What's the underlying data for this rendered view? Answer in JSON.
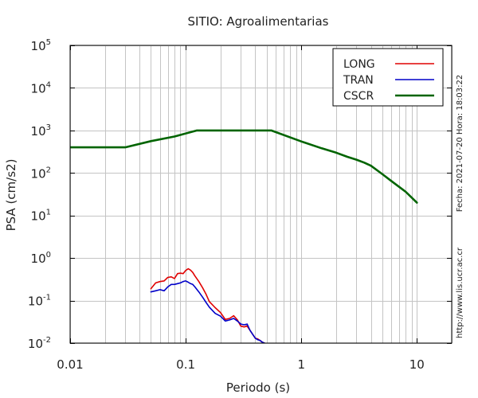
{
  "chart_data": {
    "type": "line",
    "title": "SITIO: Agroalimentarias",
    "xlabel": "Periodo (s)",
    "ylabel": "PSA (cm/s2)",
    "x_scale": "log",
    "y_scale": "log",
    "xlim": [
      0.01,
      20
    ],
    "ylim": [
      0.01,
      100000
    ],
    "grid": true,
    "legend_position": "top-right",
    "x_ticks": [
      {
        "value": 0.01,
        "label": "0.01"
      },
      {
        "value": 0.1,
        "label": "0.1"
      },
      {
        "value": 1,
        "label": "1"
      },
      {
        "value": 10,
        "label": "10"
      }
    ],
    "y_ticks": [
      {
        "value": 0.01,
        "base": "10",
        "exp": "-2"
      },
      {
        "value": 0.1,
        "base": "10",
        "exp": "-1"
      },
      {
        "value": 1,
        "base": "10",
        "exp": "0"
      },
      {
        "value": 10,
        "base": "10",
        "exp": "1"
      },
      {
        "value": 100,
        "base": "10",
        "exp": "2"
      },
      {
        "value": 1000,
        "base": "10",
        "exp": "3"
      },
      {
        "value": 10000,
        "base": "10",
        "exp": "4"
      },
      {
        "value": 100000,
        "base": "10",
        "exp": "5"
      }
    ],
    "series": [
      {
        "name": "LONG",
        "color": "#e00000",
        "x": [
          0.05,
          0.055,
          0.06,
          0.065,
          0.07,
          0.075,
          0.08,
          0.085,
          0.09,
          0.095,
          0.1,
          0.105,
          0.11,
          0.115,
          0.12,
          0.13,
          0.14,
          0.15,
          0.16,
          0.18,
          0.2,
          0.22,
          0.24,
          0.26,
          0.28,
          0.3,
          0.32,
          0.34,
          0.36,
          0.38,
          0.4,
          0.42,
          0.44,
          0.46,
          0.48
        ],
        "y": [
          0.19,
          0.26,
          0.28,
          0.29,
          0.35,
          0.36,
          0.33,
          0.43,
          0.44,
          0.43,
          0.51,
          0.56,
          0.52,
          0.46,
          0.38,
          0.28,
          0.2,
          0.14,
          0.095,
          0.068,
          0.052,
          0.036,
          0.038,
          0.044,
          0.035,
          0.025,
          0.024,
          0.025,
          0.02,
          0.016,
          0.013,
          0.0125,
          0.0115,
          0.0105,
          0.01
        ]
      },
      {
        "name": "TRAN",
        "color": "#0000c8",
        "x": [
          0.05,
          0.055,
          0.06,
          0.065,
          0.07,
          0.075,
          0.08,
          0.085,
          0.09,
          0.095,
          0.1,
          0.105,
          0.11,
          0.115,
          0.12,
          0.13,
          0.14,
          0.15,
          0.16,
          0.18,
          0.2,
          0.22,
          0.24,
          0.26,
          0.28,
          0.3,
          0.32,
          0.34,
          0.36,
          0.38,
          0.4,
          0.42,
          0.44,
          0.46,
          0.48
        ],
        "y": [
          0.16,
          0.17,
          0.18,
          0.17,
          0.21,
          0.24,
          0.24,
          0.25,
          0.26,
          0.28,
          0.29,
          0.27,
          0.25,
          0.24,
          0.21,
          0.16,
          0.12,
          0.09,
          0.07,
          0.05,
          0.043,
          0.033,
          0.035,
          0.038,
          0.033,
          0.028,
          0.027,
          0.028,
          0.02,
          0.016,
          0.013,
          0.012,
          0.0115,
          0.0105,
          0.01
        ]
      },
      {
        "name": "CSCR",
        "color": "#006400",
        "x": [
          0.01,
          0.03,
          0.05,
          0.08,
          0.125,
          0.2,
          0.3,
          0.55,
          1.0,
          1.5,
          2.0,
          2.5,
          3.0,
          3.5,
          4.0,
          5.0,
          6.0,
          8.0,
          10.0
        ],
        "y": [
          400,
          400,
          560,
          720,
          1000,
          1000,
          1000,
          1000,
          550,
          380,
          300,
          240,
          205,
          175,
          148,
          95,
          65,
          36,
          20
        ]
      }
    ]
  },
  "side_text": {
    "timestamp": "Fecha: 2021-07-20  Hora: 18:03:22",
    "url": "http://www.lis.ucr.ac.cr"
  }
}
